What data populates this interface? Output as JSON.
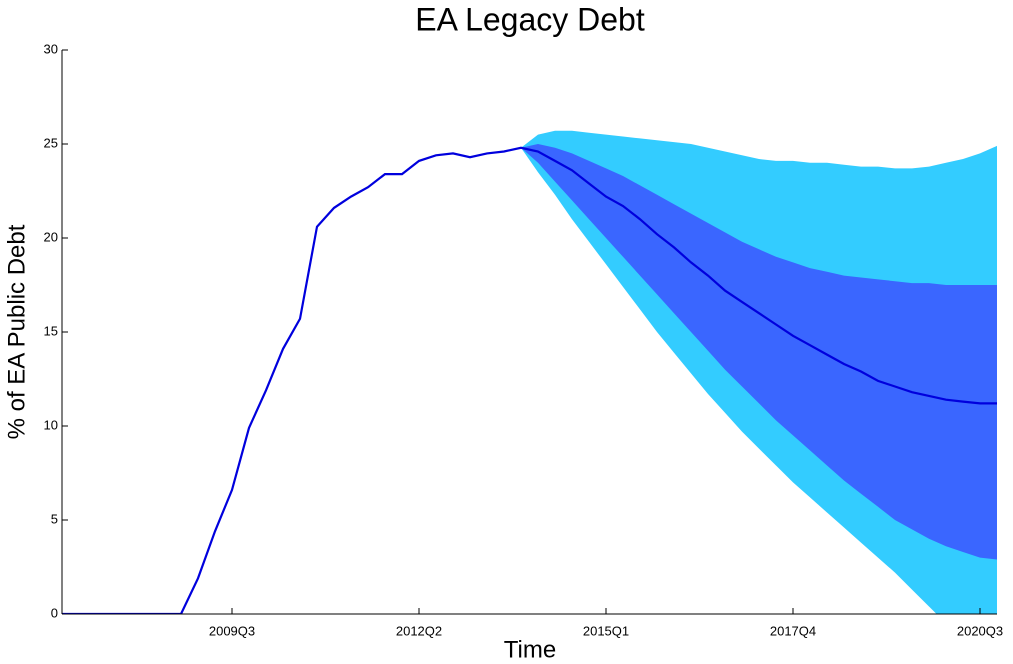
{
  "chart_data": {
    "type": "fan",
    "title": "EA Legacy Debt",
    "xlabel": "Time",
    "ylabel": "% of EA Public Debt",
    "categories": [
      null,
      null,
      null,
      null,
      null,
      null,
      null,
      null,
      null,
      null,
      "2009Q3",
      null,
      null,
      null,
      null,
      null,
      null,
      null,
      null,
      null,
      null,
      "2012Q2",
      null,
      null,
      null,
      null,
      null,
      null,
      null,
      null,
      null,
      null,
      "2015Q1",
      null,
      null,
      null,
      null,
      null,
      null,
      null,
      null,
      null,
      null,
      "2017Q4",
      null,
      null,
      null,
      null,
      null,
      null,
      null,
      null,
      null,
      null,
      "2020Q3",
      null
    ],
    "ylim": [
      0,
      30
    ],
    "yticks": [
      0,
      5,
      10,
      15,
      20,
      25,
      30
    ],
    "line": {
      "color": "#0000dd",
      "values": [
        0,
        0,
        0,
        0,
        0,
        0,
        0,
        0,
        1.9,
        4.4,
        6.6,
        9.9,
        11.9,
        14.1,
        15.7,
        20.6,
        21.6,
        22.2,
        22.7,
        23.4,
        23.4,
        24.1,
        24.4,
        24.5,
        24.3,
        24.5,
        24.6,
        24.8,
        24.6,
        24.1,
        23.6,
        22.9,
        22.2,
        21.7,
        21.0,
        20.2,
        19.5,
        18.7,
        18.0,
        17.2,
        16.6,
        16.0,
        15.4,
        14.8,
        14.3,
        13.8,
        13.3,
        12.9,
        12.4,
        12.1,
        11.8,
        11.6,
        11.4,
        11.3,
        11.2,
        11.2
      ]
    },
    "bands": [
      {
        "color": "#33ccff",
        "upper": [
          null,
          null,
          null,
          null,
          null,
          null,
          null,
          null,
          null,
          null,
          null,
          null,
          null,
          null,
          null,
          null,
          null,
          null,
          null,
          null,
          null,
          null,
          null,
          null,
          null,
          null,
          null,
          24.8,
          25.5,
          25.7,
          25.7,
          25.6,
          25.5,
          25.4,
          25.3,
          25.2,
          25.1,
          25.0,
          24.8,
          24.6,
          24.4,
          24.2,
          24.1,
          24.1,
          24.0,
          24.0,
          23.9,
          23.8,
          23.8,
          23.7,
          23.7,
          23.8,
          24.0,
          24.2,
          24.5,
          24.9
        ],
        "lower": [
          null,
          null,
          null,
          null,
          null,
          null,
          null,
          null,
          null,
          null,
          null,
          null,
          null,
          null,
          null,
          null,
          null,
          null,
          null,
          null,
          null,
          null,
          null,
          null,
          null,
          null,
          null,
          24.8,
          23.5,
          22.3,
          21.0,
          19.8,
          18.6,
          17.4,
          16.2,
          15.0,
          13.9,
          12.8,
          11.7,
          10.7,
          9.7,
          8.8,
          7.9,
          7.0,
          6.2,
          5.4,
          4.6,
          3.8,
          3.0,
          2.2,
          1.3,
          0.4,
          -0.5,
          -1.4,
          -2.3,
          -3.2
        ]
      },
      {
        "color": "#3a66ff",
        "upper": [
          null,
          null,
          null,
          null,
          null,
          null,
          null,
          null,
          null,
          null,
          null,
          null,
          null,
          null,
          null,
          null,
          null,
          null,
          null,
          null,
          null,
          null,
          null,
          null,
          null,
          null,
          null,
          24.8,
          25.0,
          24.8,
          24.5,
          24.1,
          23.7,
          23.3,
          22.8,
          22.3,
          21.8,
          21.3,
          20.8,
          20.3,
          19.8,
          19.4,
          19.0,
          18.7,
          18.4,
          18.2,
          18.0,
          17.9,
          17.8,
          17.7,
          17.6,
          17.6,
          17.5,
          17.5,
          17.5,
          17.5
        ],
        "lower": [
          null,
          null,
          null,
          null,
          null,
          null,
          null,
          null,
          null,
          null,
          null,
          null,
          null,
          null,
          null,
          null,
          null,
          null,
          null,
          null,
          null,
          null,
          null,
          null,
          null,
          null,
          null,
          24.8,
          24.0,
          23.0,
          22.0,
          21.0,
          20.0,
          19.0,
          18.0,
          17.0,
          16.0,
          15.0,
          14.0,
          13.0,
          12.1,
          11.2,
          10.3,
          9.5,
          8.7,
          7.9,
          7.1,
          6.4,
          5.7,
          5.0,
          4.5,
          4.0,
          3.6,
          3.3,
          3.0,
          2.9
        ]
      }
    ]
  }
}
